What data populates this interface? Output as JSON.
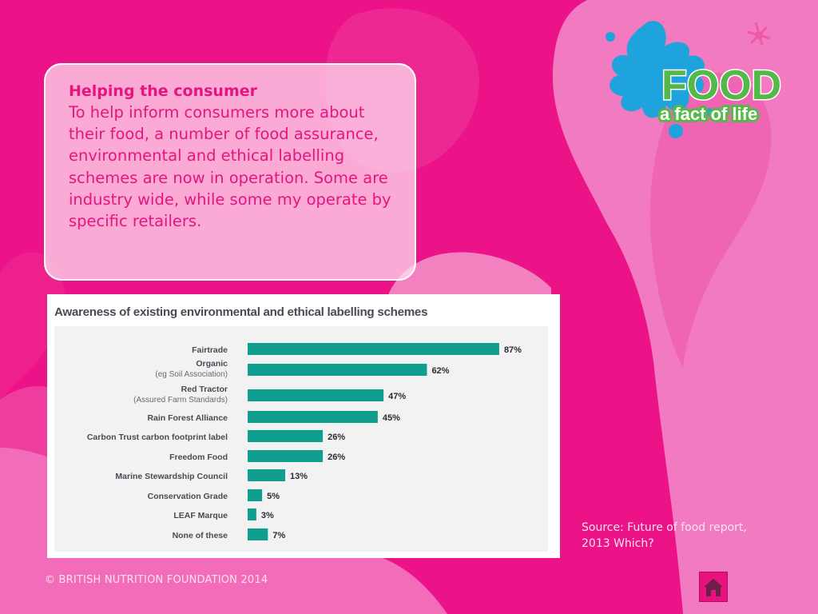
{
  "textbox": {
    "heading": "Helping the consumer",
    "body": "To help inform consumers more about their food, a number of food assurance, environmental and ethical labelling schemes are now in operation. Some are industry wide, while some my operate by specific retailers."
  },
  "logo": {
    "line1": "FOOD",
    "line2": "a fact of life",
    "icon": "splash-logo-icon"
  },
  "chart_data": {
    "type": "bar",
    "orientation": "horizontal",
    "title": "Awareness of existing environmental and ethical labelling schemes",
    "categories": [
      {
        "label": "Fairtrade",
        "sublabel": ""
      },
      {
        "label": "Organic",
        "sublabel": "(eg Soil Association)"
      },
      {
        "label": "Red Tractor",
        "sublabel": "(Assured Farm Standards)"
      },
      {
        "label": "Rain Forest Alliance",
        "sublabel": ""
      },
      {
        "label": "Carbon Trust carbon footprint label",
        "sublabel": ""
      },
      {
        "label": "Freedom Food",
        "sublabel": ""
      },
      {
        "label": "Marine Stewardship Council",
        "sublabel": ""
      },
      {
        "label": "Conservation Grade",
        "sublabel": ""
      },
      {
        "label": "LEAF Marque",
        "sublabel": ""
      },
      {
        "label": "None of these",
        "sublabel": ""
      }
    ],
    "values": [
      87,
      62,
      47,
      45,
      26,
      26,
      13,
      5,
      3,
      7
    ],
    "value_suffix": "%",
    "xlim": [
      0,
      100
    ],
    "bar_color": "#109f8f",
    "grid": false,
    "legend": "none"
  },
  "source": {
    "line1": "Source: Future of food report,",
    "line2": "2013 Which?"
  },
  "footer": {
    "copyright": "© BRITISH NUTRITION FOUNDATION 2014"
  },
  "home_button": {
    "icon": "home-icon"
  },
  "colors": {
    "background": "#ec1287",
    "text_pink": "#e5147f",
    "logo_green": "#54b948",
    "logo_blue": "#1fa3dd"
  }
}
